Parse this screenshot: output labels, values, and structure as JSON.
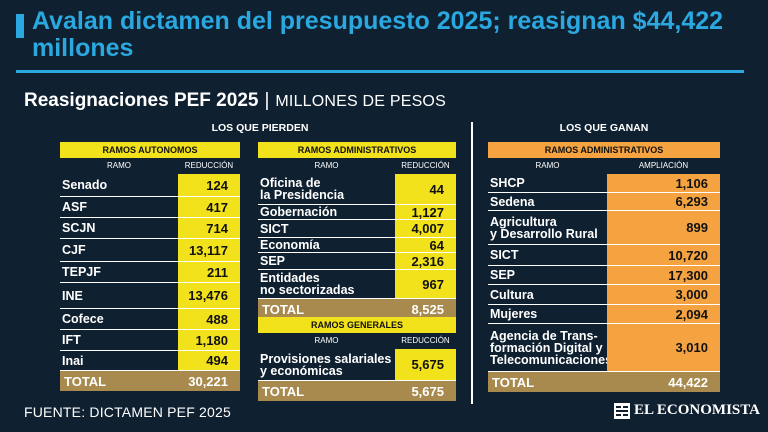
{
  "header": {
    "title": "Avalan dictamen del presupuesto 2025; reasignan $44,422 millones",
    "subtitle_bold": "Reasignaciones PEF 2025",
    "subtitle_sep": "|",
    "subtitle_unit": "MILLONES DE PESOS"
  },
  "groups": {
    "pierden": "LOS QUE PIERDEN",
    "ganan": "LOS QUE GANAN"
  },
  "colors": {
    "background": "#0f2030",
    "accent": "#2aa8df",
    "loss_fill": "#f2e21b",
    "gain_fill": "#f4a340",
    "total_fill": "#a88a4f"
  },
  "footer": {
    "source": "FUENTE: DICTAMEN PEF 2025",
    "brand": "EL ECONOMISTA",
    "brand_icon": "el-economista-logo-icon"
  },
  "chart_data": {
    "type": "table",
    "title": "Reasignaciones PEF 2025",
    "unit": "MILLONES DE PESOS",
    "tables": [
      {
        "group": "LOS QUE PIERDEN",
        "band": "RAMOS AUTONOMOS",
        "col_name": "RAMO",
        "col_value": "REDUCCIÓN",
        "rows": [
          {
            "name": "Senado",
            "value": "124"
          },
          {
            "name": "ASF",
            "value": "417"
          },
          {
            "name": "SCJN",
            "value": "714"
          },
          {
            "name": "CJF",
            "value": "13,117"
          },
          {
            "name": "TEPJF",
            "value": "211"
          },
          {
            "name": "INE",
            "value": "13,476"
          },
          {
            "name": "Cofece",
            "value": "488"
          },
          {
            "name": "IFT",
            "value": "1,180"
          },
          {
            "name": "Inai",
            "value": "494"
          }
        ],
        "total_label": "TOTAL",
        "total_value": "30,221"
      },
      {
        "group": "LOS QUE PIERDEN",
        "band": "RAMOS ADMINISTRATIVOS",
        "col_name": "RAMO",
        "col_value": "REDUCCIÓN",
        "rows": [
          {
            "name": "Oficina de\nla Presidencia",
            "value": "44"
          },
          {
            "name": "Gobernación",
            "value": "1,127"
          },
          {
            "name": "SICT",
            "value": "4,007"
          },
          {
            "name": "Economía",
            "value": "64"
          },
          {
            "name": "SEP",
            "value": "2,316"
          },
          {
            "name": "Entidades\nno sectorizadas",
            "value": "967"
          }
        ],
        "total_label": "TOTAL",
        "total_value": "8,525"
      },
      {
        "group": "LOS QUE PIERDEN",
        "band": "RAMOS GENERALES",
        "col_name": "RAMO",
        "col_value": "REDUCCIÓN",
        "rows": [
          {
            "name": "Provisiones salariales\ny económicas",
            "value": "5,675"
          }
        ],
        "total_label": "TOTAL",
        "total_value": "5,675"
      },
      {
        "group": "LOS QUE GANAN",
        "band": "RAMOS ADMINISTRATIVOS",
        "col_name": "RAMO",
        "col_value": "AMPLIACIÓN",
        "rows": [
          {
            "name": "SHCP",
            "value": "1,106"
          },
          {
            "name": "Sedena",
            "value": "6,293"
          },
          {
            "name": "Agricultura\ny Desarrollo Rural",
            "value": "899"
          },
          {
            "name": "SICT",
            "value": "10,720"
          },
          {
            "name": "SEP",
            "value": "17,300"
          },
          {
            "name": "Cultura",
            "value": "3,000"
          },
          {
            "name": "Mujeres",
            "value": "2,094"
          },
          {
            "name": "Agencia de Trans-\nformación Digital y\nTelecomunicaciones",
            "value": "3,010"
          }
        ],
        "total_label": "TOTAL",
        "total_value": "44,422"
      }
    ]
  }
}
